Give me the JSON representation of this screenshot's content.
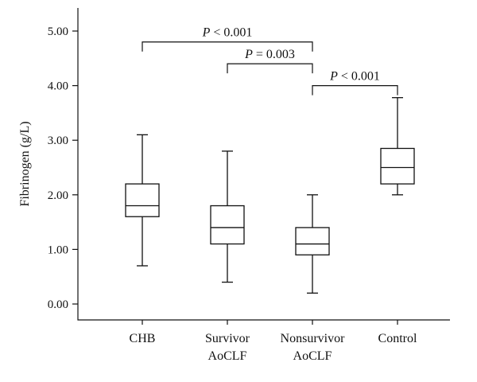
{
  "chart_data": {
    "type": "box",
    "ylabel": "Fibrinogen (g/L)",
    "xlabel": "",
    "ylim": [
      0,
      5.2
    ],
    "yticks": [
      {
        "value": 0,
        "label": "0.00"
      },
      {
        "value": 1,
        "label": "1.00"
      },
      {
        "value": 2,
        "label": "2.00"
      },
      {
        "value": 3,
        "label": "3.00"
      },
      {
        "value": 4,
        "label": "4.00"
      },
      {
        "value": 5,
        "label": "5.00"
      }
    ],
    "categories": [
      {
        "lines": [
          "CHB"
        ],
        "whisker_low": 0.7,
        "q1": 1.6,
        "median": 1.8,
        "q3": 2.2,
        "whisker_high": 3.1
      },
      {
        "lines": [
          "Survivor",
          "AoCLF"
        ],
        "whisker_low": 0.4,
        "q1": 1.1,
        "median": 1.4,
        "q3": 1.8,
        "whisker_high": 2.8
      },
      {
        "lines": [
          "Nonsurvivor",
          "AoCLF"
        ],
        "whisker_low": 0.2,
        "q1": 0.9,
        "median": 1.1,
        "q3": 1.4,
        "whisker_high": 2.0
      },
      {
        "lines": [
          "Control"
        ],
        "whisker_low": 2.0,
        "q1": 2.2,
        "median": 2.5,
        "q3": 2.85,
        "whisker_high": 3.78
      }
    ],
    "annotations": [
      {
        "from": 0,
        "to": 2,
        "y": 4.8,
        "p": "P",
        "text": " < 0.001"
      },
      {
        "from": 1,
        "to": 2,
        "y": 4.4,
        "p": "P",
        "text": " = 0.003"
      },
      {
        "from": 2,
        "to": 3,
        "y": 4.0,
        "p": "P",
        "text": " < 0.001"
      }
    ],
    "grid": false,
    "legend": "none"
  }
}
